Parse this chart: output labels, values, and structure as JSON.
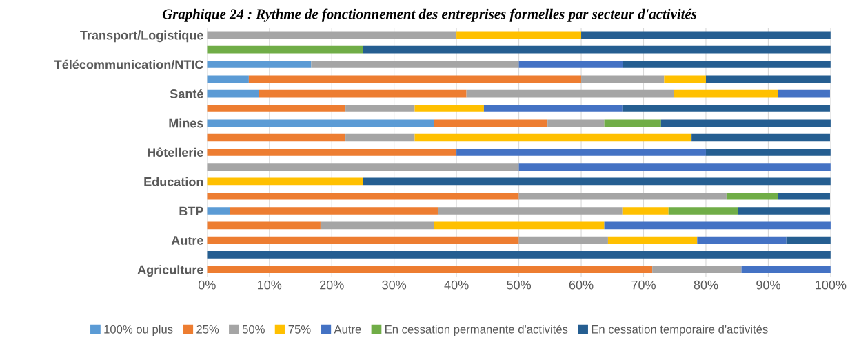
{
  "chart_data": {
    "type": "bar",
    "orientation": "horizontal",
    "stacked": true,
    "title": "Graphique 24 : Rythme de fonctionnement des entreprises formelles par secteur d'activités",
    "categories": [
      "Transport/Logistique",
      null,
      "Télécommunication/NTIC",
      null,
      "Santé",
      null,
      "Mines",
      null,
      "Hôtellerie",
      null,
      "Education",
      null,
      "BTP",
      null,
      "Autre",
      null,
      "Agriculture"
    ],
    "series": [
      {
        "name": "100% ou plus",
        "color": "#5b9bd5",
        "values": [
          0,
          0,
          16.7,
          6.7,
          8.3,
          0,
          36.4,
          0,
          0,
          0,
          0,
          0,
          3.7,
          0,
          0,
          0,
          0
        ]
      },
      {
        "name": "25%",
        "color": "#ed7d31",
        "values": [
          0,
          0,
          0,
          53.3,
          33.3,
          22.2,
          18.2,
          22.2,
          40,
          0,
          0,
          50,
          33.3,
          18.2,
          50,
          0,
          71.4
        ]
      },
      {
        "name": "50%",
        "color": "#a5a5a5",
        "values": [
          40,
          0,
          33.3,
          13.3,
          33.3,
          11.1,
          9.1,
          11.1,
          0,
          50,
          0,
          33.3,
          29.6,
          18.2,
          14.3,
          0,
          14.3
        ]
      },
      {
        "name": "75%",
        "color": "#ffc000",
        "values": [
          20,
          0,
          0,
          6.7,
          16.7,
          11.1,
          0,
          44.4,
          0,
          0,
          25,
          0,
          7.4,
          27.3,
          14.3,
          0,
          0
        ]
      },
      {
        "name": "Autre",
        "color": "#4472c4",
        "values": [
          0,
          0,
          16.7,
          0,
          8.3,
          22.2,
          0,
          0,
          40,
          50,
          0,
          0,
          0,
          36.4,
          14.3,
          0,
          14.3
        ]
      },
      {
        "name": "En cessation permanente d'activités",
        "color": "#70ad47",
        "values": [
          0,
          25,
          0,
          0,
          0,
          0,
          9.1,
          0,
          0,
          0,
          0,
          8.3,
          11.1,
          0,
          0,
          0,
          0
        ]
      },
      {
        "name": "En cessation temporaire d'activités",
        "color": "#255e91",
        "values": [
          40,
          75,
          33.3,
          20,
          0,
          33.3,
          27.3,
          22.2,
          20,
          0,
          75,
          8.3,
          14.8,
          0,
          7.1,
          100,
          0
        ]
      }
    ],
    "xlim": [
      0,
      100
    ],
    "xticks": [
      {
        "value": 0,
        "label": "0%"
      },
      {
        "value": 10,
        "label": "10%"
      },
      {
        "value": 20,
        "label": "20%"
      },
      {
        "value": 30,
        "label": "30%"
      },
      {
        "value": 40,
        "label": "40%"
      },
      {
        "value": 50,
        "label": "50%"
      },
      {
        "value": 60,
        "label": "60%"
      },
      {
        "value": 70,
        "label": "70%"
      },
      {
        "value": 80,
        "label": "80%"
      },
      {
        "value": 90,
        "label": "90%"
      },
      {
        "value": 100,
        "label": "100%"
      }
    ],
    "grid": "x",
    "legend": "bottom"
  }
}
